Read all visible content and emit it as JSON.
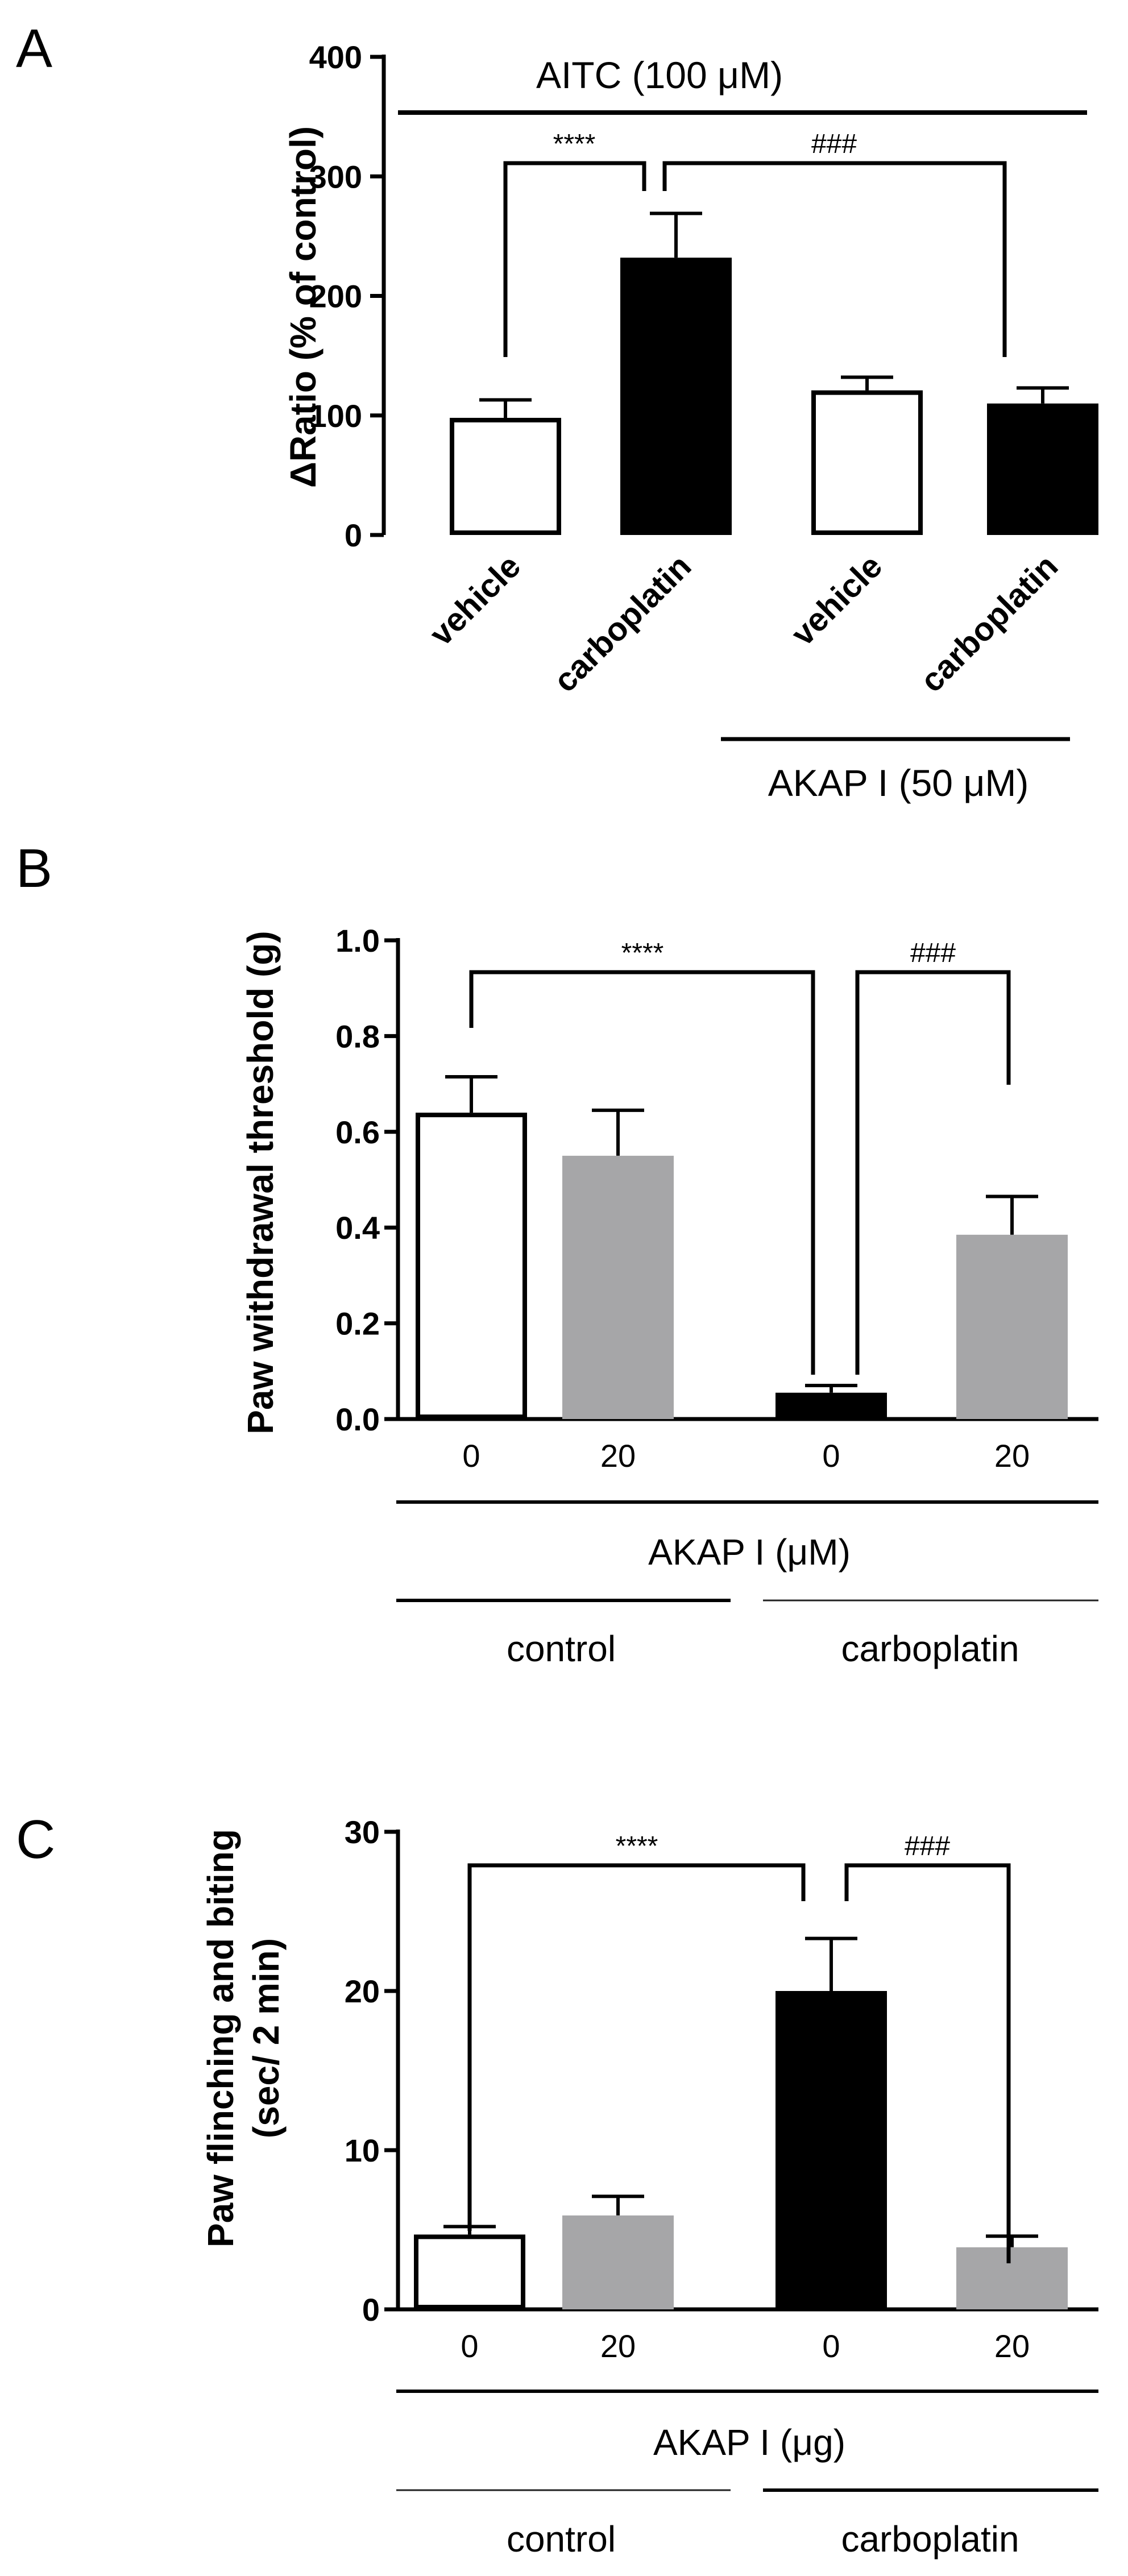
{
  "colors": {
    "white": "#ffffff",
    "black": "#000000",
    "gray": "#a6a6a8",
    "thin_line": "#222222"
  },
  "chart_data": [
    {
      "panel": "A",
      "type": "bar",
      "ylabel": "ΔRatio (% of control)",
      "ylim": [
        0,
        400
      ],
      "yticks": [
        0,
        100,
        200,
        300,
        400
      ],
      "categories": [
        "vehicle",
        "carboplatin",
        "vehicle",
        "carboplatin"
      ],
      "values": [
        98,
        232,
        121,
        110
      ],
      "errors": [
        15,
        37,
        11,
        13
      ],
      "fills": [
        "white",
        "black",
        "white",
        "black"
      ],
      "condition_label": "AITC (100  μM)",
      "group_label": "AKAP I (50 μM)",
      "significance": [
        {
          "from": 0,
          "to": 1,
          "label": "****"
        },
        {
          "from": 1,
          "to": 3,
          "label": "###"
        }
      ]
    },
    {
      "panel": "B",
      "type": "bar",
      "ylabel": "Paw withdrawal threshold (g)",
      "ylim": [
        0,
        1.0
      ],
      "yticks": [
        "0.0",
        "0.2",
        "0.4",
        "0.6",
        "0.8",
        "1.0"
      ],
      "categories": [
        "0",
        "20",
        "0",
        "20"
      ],
      "values": [
        0.64,
        0.55,
        0.055,
        0.385
      ],
      "errors": [
        0.075,
        0.095,
        0.015,
        0.08
      ],
      "fills": [
        "white",
        "gray",
        "black",
        "gray"
      ],
      "xlabel": "AKAP I (μM)",
      "groups": [
        "control",
        "carboplatin"
      ],
      "significance": [
        {
          "from": 0,
          "to": 2,
          "label": "****"
        },
        {
          "from": 2,
          "to": 3,
          "label": "###"
        }
      ]
    },
    {
      "panel": "C",
      "type": "bar",
      "ylabel": "Paw flinching and biting (sec/ 2 min)",
      "ylabel_lines": [
        "Paw flinching and biting",
        "(sec/ 2 min)"
      ],
      "ylim": [
        0,
        30
      ],
      "yticks": [
        0,
        10,
        20,
        30
      ],
      "categories": [
        "0",
        "20",
        "0",
        "20"
      ],
      "values": [
        4.7,
        5.9,
        20.0,
        3.9
      ],
      "errors": [
        0.5,
        1.2,
        3.3,
        0.7
      ],
      "fills": [
        "white",
        "gray",
        "black",
        "gray"
      ],
      "xlabel": "AKAP I (μg)",
      "groups": [
        "control",
        "carboplatin"
      ],
      "significance": [
        {
          "from": 0,
          "to": 2,
          "label": "****"
        },
        {
          "from": 2,
          "to": 3,
          "label": "###"
        }
      ]
    }
  ]
}
